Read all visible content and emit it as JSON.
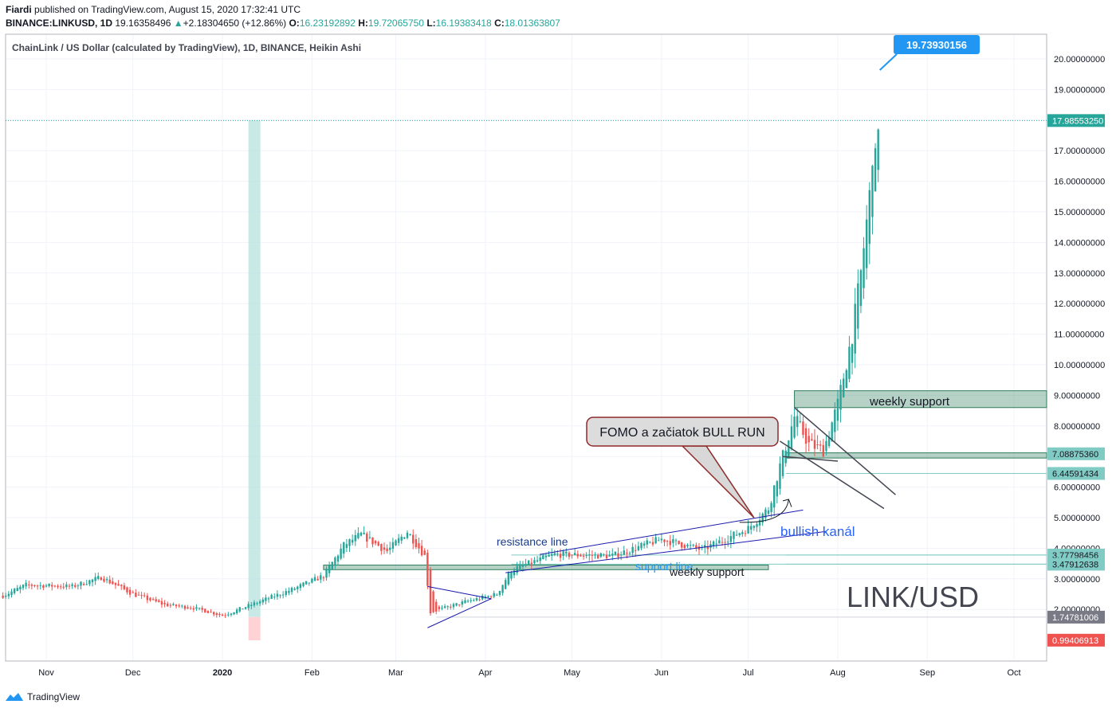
{
  "header": {
    "author": "Fiardi",
    "published": "published on TradingView.com, August 15, 2020 17:32:41 UTC",
    "symbol": "BINANCE:LINKUSD, 1D",
    "last": "19.16358496",
    "change": "+2.18304650 (+12.86%)",
    "o_label": "O:",
    "o": "16.23192892",
    "h_label": "H:",
    "h": "19.72065750",
    "l_label": "L:",
    "l": "16.19383418",
    "c_label": "C:",
    "c": "18.01363807"
  },
  "footer": {
    "brand": "TradingView"
  },
  "colors": {
    "up": "#26a69a",
    "down": "#ef5350",
    "line": "#1a1aad",
    "zone": "#2e7d5b",
    "accent": "#2196f3"
  },
  "chart_data": {
    "type": "candlestick",
    "title": "ChainLink / US Dollar (calculated by TradingView), 1D, BINANCE, Heikin Ashi",
    "x_axis_labels": [
      "Nov",
      "Dec",
      "2020",
      "Feb",
      "Mar",
      "Apr",
      "May",
      "Jun",
      "Jul",
      "Aug",
      "Sep",
      "Oct"
    ],
    "y_axis": {
      "ticks": [
        "2.00000000",
        "3.00000000",
        "4.00000000",
        "5.00000000",
        "6.00000000",
        "7.00000000",
        "8.00000000",
        "9.00000000",
        "10.00000000",
        "11.00000000",
        "12.00000000",
        "13.00000000",
        "14.00000000",
        "15.00000000",
        "16.00000000",
        "17.00000000",
        "18.00000000",
        "19.00000000",
        "20.00000000"
      ],
      "range": [
        0.85,
        20.6
      ]
    },
    "grid": true,
    "price_labels": [
      {
        "text": "17.98553250",
        "value": 17.9855325,
        "color": "#26a69a"
      },
      {
        "text": "7.08875360",
        "value": 7.0887536,
        "color": "#80cbc4"
      },
      {
        "text": "6.44591434",
        "value": 6.44591434,
        "color": "#80cbc4"
      },
      {
        "text": "3.77798456",
        "value": 3.77798456,
        "color": "#80cbc4"
      },
      {
        "text": "3.47912638",
        "value": 3.47912638,
        "color": "#80cbc4"
      },
      {
        "text": "1.74781006",
        "value": 1.74781006,
        "color": "#787b86"
      },
      {
        "text": "0.99406913",
        "value": 0.99406913,
        "color": "#ef5350"
      }
    ],
    "series": [
      {
        "date": "2019-10-17",
        "close": 2.45
      },
      {
        "date": "2019-10-25",
        "close": 2.8
      },
      {
        "date": "2019-11-10",
        "close": 2.75
      },
      {
        "date": "2019-11-20",
        "close": 3.05
      },
      {
        "date": "2019-12-01",
        "close": 2.5
      },
      {
        "date": "2019-12-12",
        "close": 2.15
      },
      {
        "date": "2019-12-22",
        "close": 2.05
      },
      {
        "date": "2020-01-01",
        "close": 1.8
      },
      {
        "date": "2020-01-15",
        "close": 2.3
      },
      {
        "date": "2020-01-25",
        "close": 2.65
      },
      {
        "date": "2020-02-05",
        "close": 3.1
      },
      {
        "date": "2020-02-12",
        "close": 4.1
      },
      {
        "date": "2020-02-18",
        "close": 4.45
      },
      {
        "date": "2020-02-27",
        "close": 3.9
      },
      {
        "date": "2020-03-05",
        "close": 4.55
      },
      {
        "date": "2020-03-11",
        "close": 3.75
      },
      {
        "date": "2020-03-13",
        "close": 1.9
      },
      {
        "date": "2020-03-25",
        "close": 2.25
      },
      {
        "date": "2020-04-05",
        "close": 2.5
      },
      {
        "date": "2020-04-10",
        "close": 3.3
      },
      {
        "date": "2020-04-25",
        "close": 3.8
      },
      {
        "date": "2020-05-15",
        "close": 3.75
      },
      {
        "date": "2020-06-01",
        "close": 4.3
      },
      {
        "date": "2020-06-15",
        "close": 3.95
      },
      {
        "date": "2020-07-01",
        "close": 4.65
      },
      {
        "date": "2020-07-08",
        "close": 5.3
      },
      {
        "date": "2020-07-12",
        "close": 6.7
      },
      {
        "date": "2020-07-17",
        "close": 8.3
      },
      {
        "date": "2020-07-22",
        "close": 7.4
      },
      {
        "date": "2020-07-27",
        "close": 7.2
      },
      {
        "date": "2020-08-01",
        "close": 8.7
      },
      {
        "date": "2020-08-06",
        "close": 11.0
      },
      {
        "date": "2020-08-09",
        "close": 13.0
      },
      {
        "date": "2020-08-12",
        "close": 15.5
      },
      {
        "date": "2020-08-13",
        "close": 17.0
      },
      {
        "date": "2020-08-14",
        "close": 16.6
      },
      {
        "date": "2020-08-15",
        "close": 18.0
      }
    ],
    "annotations": [
      {
        "kind": "callout",
        "text": "FOMO a začiatok BULL RUN",
        "date": "2020-07-03",
        "price": 5.0
      },
      {
        "kind": "text",
        "text": "resistance line"
      },
      {
        "kind": "text",
        "text": "bullish kanál"
      },
      {
        "kind": "text",
        "text": "support line"
      },
      {
        "kind": "text",
        "text": "weekly support"
      },
      {
        "kind": "text",
        "text": "weekly support"
      },
      {
        "kind": "text",
        "text": "LINK/USD"
      },
      {
        "kind": "bubble",
        "text": "19.73930156",
        "value": 19.73930156
      }
    ],
    "zones": [
      {
        "name": "weekly-support-upper",
        "from_date": "2020-07-17",
        "to_date": "2020-10-20",
        "low": 8.6,
        "high": 9.15
      },
      {
        "name": "bullish-zone",
        "from_date": "2020-07-14",
        "to_date": "2020-10-20",
        "low": 6.95,
        "high": 7.12
      },
      {
        "name": "weekly-support-lower",
        "from_date": "2020-02-05",
        "to_date": "2020-07-08",
        "low": 3.3,
        "high": 3.45
      }
    ]
  }
}
